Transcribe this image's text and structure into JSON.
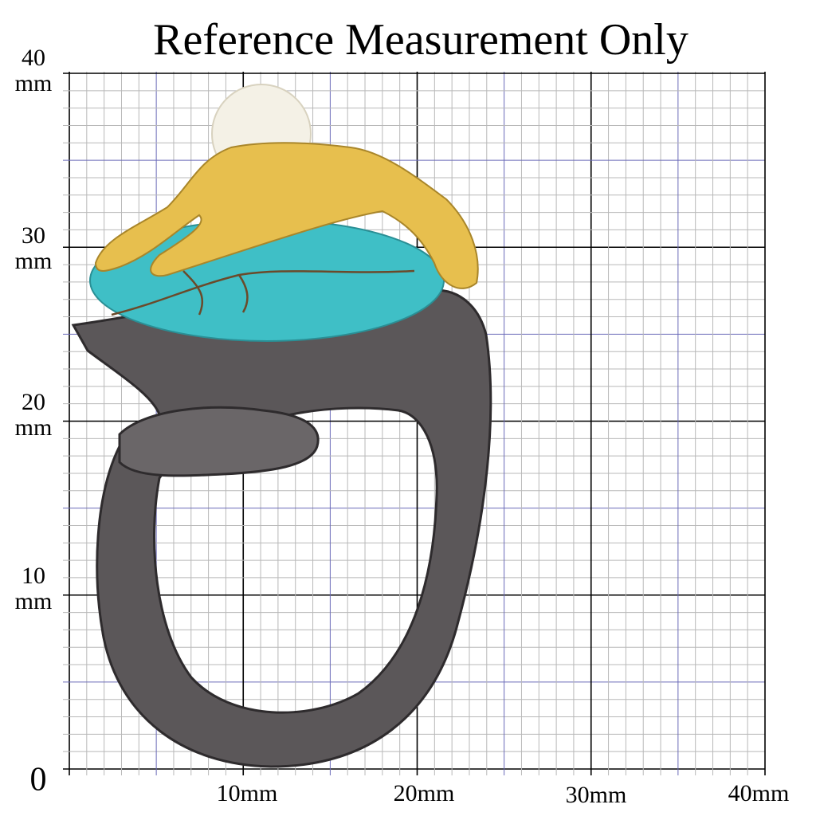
{
  "header": {
    "title": "Reference Measurement Only"
  },
  "y_axis": {
    "labels": [
      {
        "number": "40",
        "unit": "mm"
      },
      {
        "number": "30",
        "unit": "mm"
      },
      {
        "number": "20",
        "unit": "mm"
      },
      {
        "number": "10",
        "unit": "mm"
      }
    ],
    "origin": "0"
  },
  "x_axis": {
    "labels": [
      "10mm",
      "20mm",
      "30mm",
      "40mm"
    ]
  }
}
